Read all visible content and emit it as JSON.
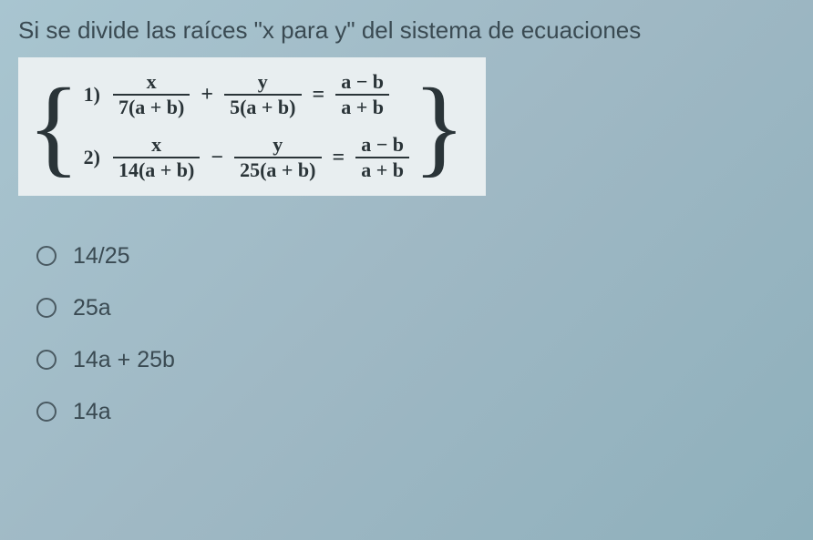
{
  "question": "Si se divide las raíces \"x para y\" del sistema de ecuaciones",
  "equations": {
    "row1": {
      "num": "1)",
      "t1_top": "x",
      "t1_bot": "7(a + b)",
      "op1": "+",
      "t2_top": "y",
      "t2_bot": "5(a + b)",
      "eq": "=",
      "t3_top": "a − b",
      "t3_bot": "a + b"
    },
    "row2": {
      "num": "2)",
      "t1_top": "x",
      "t1_bot": "14(a + b)",
      "op1": "−",
      "t2_top": "y",
      "t2_bot": "25(a + b)",
      "eq": "=",
      "t3_top": "a −  b",
      "t3_bot": "a + b"
    }
  },
  "options": {
    "a": "14/25",
    "b": "25a",
    "c": "14a + 25b",
    "d": "14a"
  },
  "colors": {
    "bg_start": "#a8c5d0",
    "bg_end": "#8eb0bc",
    "box_bg": "#e8eef0",
    "text": "#3a4a52",
    "eq_text": "#2a3438",
    "radio_border": "#4a5a62"
  },
  "typography": {
    "question_fontsize": 26,
    "eq_fontsize": 22,
    "option_fontsize": 25,
    "brace_fontsize": 120
  }
}
